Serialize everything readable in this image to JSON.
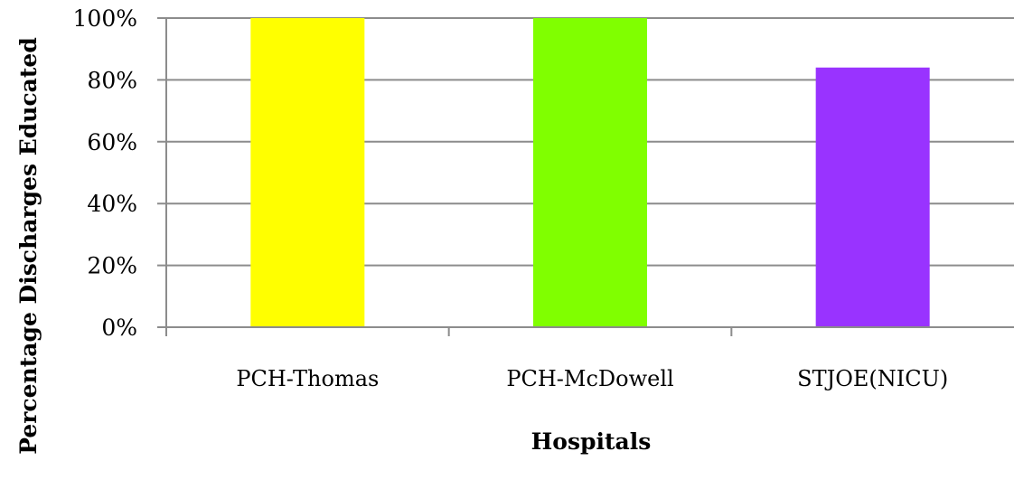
{
  "chart_data": {
    "type": "bar",
    "categories": [
      "PCH-Thomas",
      "PCH-McDowell",
      "STJOE(NICU)"
    ],
    "values": [
      100,
      100,
      84
    ],
    "bar_colors": [
      "#ffff00",
      "#80ff00",
      "#9933ff"
    ],
    "xlabel": "Hospitals",
    "ylabel": "Percentage Discharges Educated",
    "ylim": [
      0,
      100
    ],
    "yticks": [
      0,
      20,
      40,
      60,
      80,
      100
    ],
    "ytick_labels": [
      "0%",
      "20%",
      "40%",
      "60%",
      "80%",
      "100%"
    ],
    "grid": true,
    "legend": "none"
  }
}
